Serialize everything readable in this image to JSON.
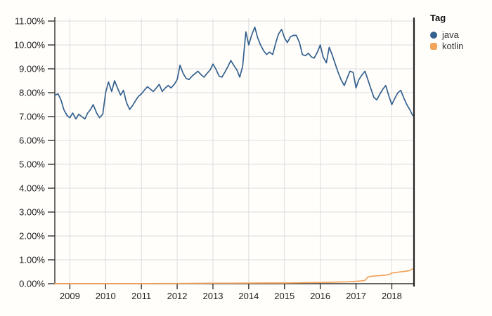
{
  "legend": {
    "title": "Tag",
    "items": [
      {
        "label": "java",
        "color": "#34618f"
      },
      {
        "label": "kotlin",
        "color": "#f2a35c"
      }
    ]
  },
  "chart_data": {
    "type": "line",
    "title": "",
    "xlabel": "",
    "ylabel": "",
    "grid": true,
    "legend_position": "right",
    "xlim": [
      2008.58,
      2018.62
    ],
    "ylim": [
      0,
      11
    ],
    "x_ticks": [
      2009,
      2010,
      2011,
      2012,
      2013,
      2014,
      2015,
      2016,
      2017,
      2018
    ],
    "x_tick_labels": [
      "2009",
      "2010",
      "2011",
      "2012",
      "2013",
      "2014",
      "2015",
      "2016",
      "2017",
      "2018"
    ],
    "y_ticks": [
      0,
      1,
      2,
      3,
      4,
      5,
      6,
      7,
      8,
      9,
      10,
      11
    ],
    "y_tick_labels": [
      "0.00%",
      "1.00%",
      "2.00%",
      "3.00%",
      "4.00%",
      "5.00%",
      "6.00%",
      "7.00%",
      "8.00%",
      "9.00%",
      "10.00%",
      "11.00%"
    ],
    "series": [
      {
        "name": "java",
        "color": "#34618f",
        "points": [
          [
            2008.58,
            7.9
          ],
          [
            2008.67,
            7.95
          ],
          [
            2008.75,
            7.7
          ],
          [
            2008.83,
            7.3
          ],
          [
            2008.92,
            7.05
          ],
          [
            2009.0,
            6.95
          ],
          [
            2009.08,
            7.15
          ],
          [
            2009.17,
            6.9
          ],
          [
            2009.25,
            7.1
          ],
          [
            2009.33,
            7.0
          ],
          [
            2009.42,
            6.9
          ],
          [
            2009.5,
            7.15
          ],
          [
            2009.58,
            7.3
          ],
          [
            2009.65,
            7.5
          ],
          [
            2009.75,
            7.15
          ],
          [
            2009.83,
            6.95
          ],
          [
            2009.92,
            7.1
          ],
          [
            2010.0,
            8.0
          ],
          [
            2010.08,
            8.45
          ],
          [
            2010.17,
            8.05
          ],
          [
            2010.25,
            8.5
          ],
          [
            2010.33,
            8.2
          ],
          [
            2010.42,
            7.9
          ],
          [
            2010.5,
            8.1
          ],
          [
            2010.58,
            7.6
          ],
          [
            2010.67,
            7.3
          ],
          [
            2010.75,
            7.45
          ],
          [
            2010.83,
            7.65
          ],
          [
            2010.92,
            7.85
          ],
          [
            2011.0,
            7.95
          ],
          [
            2011.08,
            8.1
          ],
          [
            2011.17,
            8.25
          ],
          [
            2011.25,
            8.15
          ],
          [
            2011.33,
            8.05
          ],
          [
            2011.42,
            8.2
          ],
          [
            2011.5,
            8.35
          ],
          [
            2011.58,
            8.05
          ],
          [
            2011.67,
            8.2
          ],
          [
            2011.75,
            8.3
          ],
          [
            2011.83,
            8.2
          ],
          [
            2011.92,
            8.35
          ],
          [
            2012.0,
            8.55
          ],
          [
            2012.08,
            9.15
          ],
          [
            2012.17,
            8.8
          ],
          [
            2012.25,
            8.6
          ],
          [
            2012.33,
            8.55
          ],
          [
            2012.42,
            8.7
          ],
          [
            2012.5,
            8.8
          ],
          [
            2012.58,
            8.9
          ],
          [
            2012.67,
            8.75
          ],
          [
            2012.75,
            8.65
          ],
          [
            2012.83,
            8.8
          ],
          [
            2012.92,
            8.95
          ],
          [
            2013.0,
            9.2
          ],
          [
            2013.08,
            9.0
          ],
          [
            2013.17,
            8.7
          ],
          [
            2013.25,
            8.65
          ],
          [
            2013.33,
            8.85
          ],
          [
            2013.42,
            9.1
          ],
          [
            2013.5,
            9.35
          ],
          [
            2013.58,
            9.15
          ],
          [
            2013.67,
            8.95
          ],
          [
            2013.75,
            8.65
          ],
          [
            2013.83,
            9.1
          ],
          [
            2013.92,
            10.55
          ],
          [
            2014.0,
            10.0
          ],
          [
            2014.08,
            10.4
          ],
          [
            2014.17,
            10.75
          ],
          [
            2014.25,
            10.3
          ],
          [
            2014.33,
            10.0
          ],
          [
            2014.42,
            9.75
          ],
          [
            2014.5,
            9.6
          ],
          [
            2014.58,
            9.7
          ],
          [
            2014.67,
            9.6
          ],
          [
            2014.75,
            10.05
          ],
          [
            2014.83,
            10.45
          ],
          [
            2014.92,
            10.65
          ],
          [
            2015.0,
            10.3
          ],
          [
            2015.08,
            10.1
          ],
          [
            2015.17,
            10.35
          ],
          [
            2015.25,
            10.4
          ],
          [
            2015.33,
            10.4
          ],
          [
            2015.42,
            10.1
          ],
          [
            2015.5,
            9.6
          ],
          [
            2015.58,
            9.55
          ],
          [
            2015.67,
            9.65
          ],
          [
            2015.75,
            9.5
          ],
          [
            2015.83,
            9.45
          ],
          [
            2015.92,
            9.7
          ],
          [
            2016.0,
            10.0
          ],
          [
            2016.08,
            9.5
          ],
          [
            2016.17,
            9.25
          ],
          [
            2016.25,
            9.9
          ],
          [
            2016.33,
            9.6
          ],
          [
            2016.42,
            9.2
          ],
          [
            2016.5,
            8.85
          ],
          [
            2016.58,
            8.55
          ],
          [
            2016.67,
            8.3
          ],
          [
            2016.75,
            8.6
          ],
          [
            2016.83,
            8.9
          ],
          [
            2016.92,
            8.85
          ],
          [
            2017.0,
            8.2
          ],
          [
            2017.08,
            8.55
          ],
          [
            2017.17,
            8.75
          ],
          [
            2017.25,
            8.9
          ],
          [
            2017.33,
            8.55
          ],
          [
            2017.42,
            8.15
          ],
          [
            2017.5,
            7.8
          ],
          [
            2017.58,
            7.7
          ],
          [
            2017.67,
            7.95
          ],
          [
            2017.75,
            8.15
          ],
          [
            2017.83,
            8.3
          ],
          [
            2017.92,
            7.85
          ],
          [
            2018.0,
            7.5
          ],
          [
            2018.08,
            7.75
          ],
          [
            2018.17,
            8.0
          ],
          [
            2018.25,
            8.1
          ],
          [
            2018.33,
            7.8
          ],
          [
            2018.42,
            7.5
          ],
          [
            2018.5,
            7.3
          ],
          [
            2018.58,
            7.05
          ]
        ]
      },
      {
        "name": "kotlin",
        "color": "#f2a35c",
        "points": [
          [
            2008.58,
            0.0
          ],
          [
            2009.0,
            0.0
          ],
          [
            2009.5,
            0.0
          ],
          [
            2010.0,
            0.0
          ],
          [
            2010.5,
            0.0
          ],
          [
            2011.0,
            0.0
          ],
          [
            2011.5,
            0.01
          ],
          [
            2012.0,
            0.01
          ],
          [
            2012.5,
            0.015
          ],
          [
            2013.0,
            0.02
          ],
          [
            2013.5,
            0.02
          ],
          [
            2014.0,
            0.025
          ],
          [
            2014.5,
            0.03
          ],
          [
            2015.0,
            0.03
          ],
          [
            2015.5,
            0.04
          ],
          [
            2016.0,
            0.05
          ],
          [
            2016.25,
            0.06
          ],
          [
            2016.5,
            0.07
          ],
          [
            2016.75,
            0.08
          ],
          [
            2017.0,
            0.1
          ],
          [
            2017.08,
            0.11
          ],
          [
            2017.17,
            0.12
          ],
          [
            2017.25,
            0.14
          ],
          [
            2017.33,
            0.28
          ],
          [
            2017.42,
            0.31
          ],
          [
            2017.5,
            0.32
          ],
          [
            2017.58,
            0.33
          ],
          [
            2017.67,
            0.34
          ],
          [
            2017.75,
            0.35
          ],
          [
            2017.83,
            0.36
          ],
          [
            2017.92,
            0.38
          ],
          [
            2018.0,
            0.45
          ],
          [
            2018.08,
            0.46
          ],
          [
            2018.17,
            0.48
          ],
          [
            2018.25,
            0.5
          ],
          [
            2018.33,
            0.51
          ],
          [
            2018.42,
            0.53
          ],
          [
            2018.5,
            0.55
          ],
          [
            2018.58,
            0.62
          ]
        ]
      }
    ],
    "colors": {
      "gridline": "#dcdcdc",
      "axis": "#333333",
      "right_border": "#222222",
      "tick_text": "#222222"
    }
  }
}
